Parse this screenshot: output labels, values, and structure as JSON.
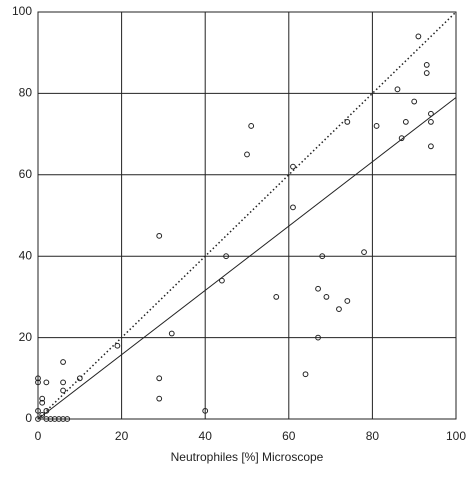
{
  "chart_data": {
    "type": "scatter",
    "x_label": "Neutrophiles [%] Microscope",
    "xlim": [
      0,
      100
    ],
    "ylim": [
      0,
      100
    ],
    "xticks": [
      0,
      20,
      40,
      60,
      80,
      100
    ],
    "yticks": [
      0,
      20,
      40,
      60,
      80,
      100
    ],
    "grid": true,
    "color": "#222222",
    "series": [
      {
        "x": [
          0,
          0,
          1,
          1,
          0,
          1,
          0,
          2,
          2,
          3,
          4,
          5,
          6,
          7,
          2,
          6,
          6,
          6,
          10,
          19,
          29,
          29,
          29,
          32,
          40,
          44,
          45,
          50,
          51,
          57,
          61,
          61,
          64,
          67,
          67,
          68,
          69,
          72,
          74,
          74,
          78,
          81,
          86,
          87,
          88,
          90,
          91,
          93,
          93,
          94,
          94,
          94
        ],
        "values": [
          10,
          9,
          5,
          4,
          2,
          1,
          0,
          0,
          2,
          0,
          0,
          0,
          0,
          0,
          9,
          14,
          9,
          7,
          10,
          18,
          45,
          10,
          5,
          21,
          2,
          34,
          40,
          65,
          72,
          30,
          62,
          52,
          11,
          32,
          20,
          40,
          30,
          27,
          73,
          29,
          41,
          72,
          81,
          69,
          73,
          78,
          94,
          87,
          85,
          75,
          73,
          67
        ]
      }
    ],
    "reference_lines": [
      {
        "style": "dotted",
        "x": [
          0,
          100
        ],
        "y": [
          0,
          100
        ]
      },
      {
        "style": "solid",
        "x": [
          0,
          100
        ],
        "y": [
          0,
          79
        ]
      }
    ]
  }
}
